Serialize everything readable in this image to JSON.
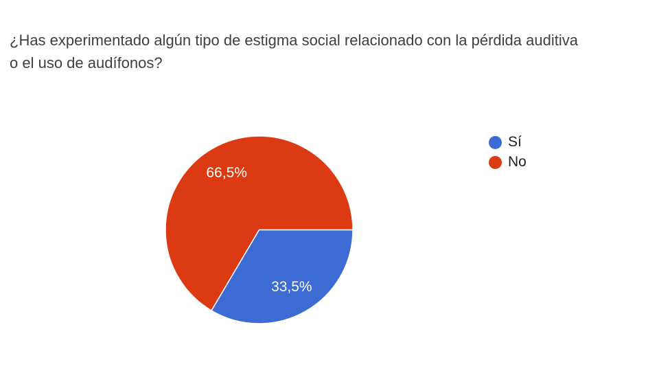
{
  "question": {
    "title_lines": [
      "¿Has experimentado algún tipo de estigma social relacionado con la pérdida auditiva",
      "o el uso de audífonos?"
    ]
  },
  "chart_data": {
    "type": "pie",
    "title": "¿Has experimentado algún tipo de estigma social relacionado con la pérdida auditiva o el uso de audífonos?",
    "legend_position": "right",
    "start_angle_deg": 0,
    "direction": "clockwise",
    "slices": [
      {
        "label": "Sí",
        "value_pct": 33.5,
        "display": "33,5%",
        "color": "#3B6BD3"
      },
      {
        "label": "No",
        "value_pct": 66.5,
        "display": "66,5%",
        "color": "#DC3A12"
      }
    ],
    "slice_label_color": "#ffffff",
    "text_color": "#3c4043",
    "background": "#ffffff"
  }
}
